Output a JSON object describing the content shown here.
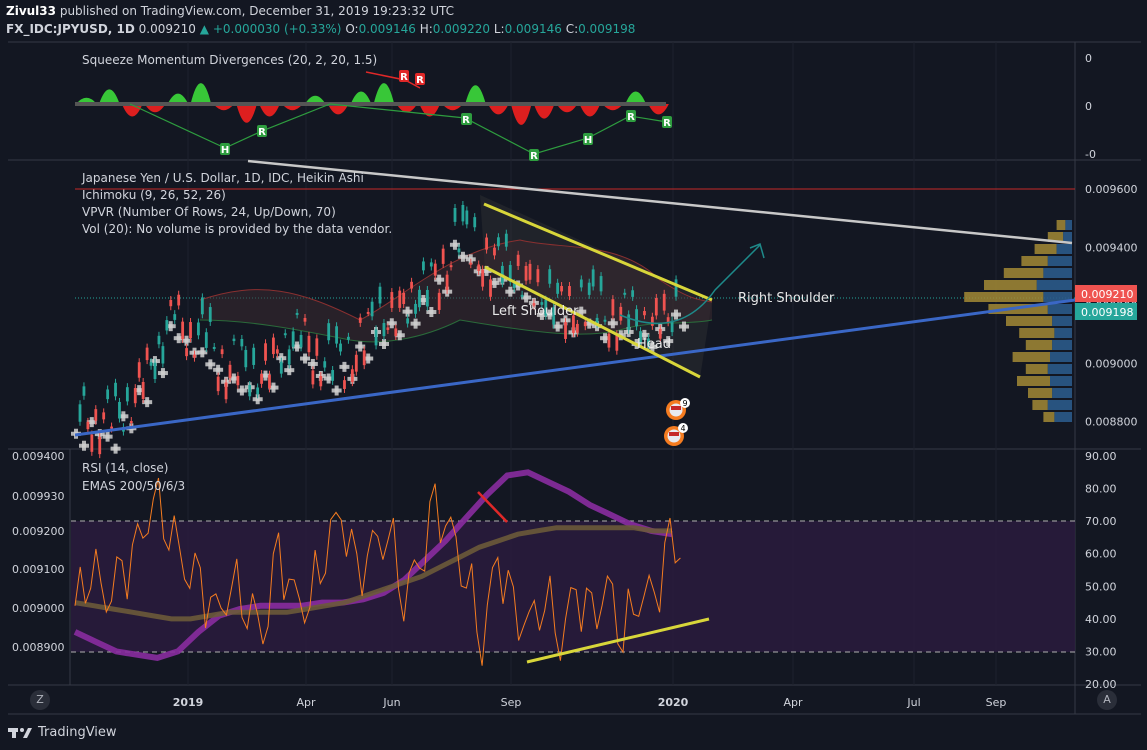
{
  "header": {
    "author": "Zivul33",
    "publish_text": "published on TradingView.com, December 31, 2019 19:23:32 UTC",
    "symbol": "FX_IDC:JPYUSD, 1D",
    "last": "0.009210",
    "change": "+0.000030 (+0.33%)",
    "o_label": "O:",
    "o": "0.009146",
    "h_label": "H:",
    "h": "0.009220",
    "l_label": "L:",
    "l": "0.009146",
    "c_label": "C:",
    "c": "0.009198"
  },
  "panes": {
    "squeeze": {
      "title": "Squeeze Momentum Divergences (20, 2, 20, 1.5)",
      "scale_labels": [
        "0",
        "0",
        "-0"
      ]
    },
    "main": {
      "legend": [
        "Japanese Yen / U.S. Dollar, 1D, IDC, Heikin Ashi",
        "Ichimoku (9, 26, 52, 26)",
        "VPVR (Number Of Rows, 24, Up/Down, 70)",
        "Vol (20): No volume is provided by the data vendor."
      ],
      "annotations": {
        "left_shoulder": "Left Shoulder",
        "head": "Head",
        "right_shoulder": "Right Shoulder"
      },
      "price_badges": [
        "0.009210",
        "0.009198"
      ],
      "event_counts": [
        "9",
        "4"
      ]
    },
    "rsi": {
      "title": "RSI (14, close)",
      "subtitle": "EMAS 200/50/6/3"
    }
  },
  "footer": {
    "brand": "TradingView",
    "left_btn": "Z",
    "right_btn": "A"
  },
  "colors": {
    "bg": "#131722",
    "up": "#26a69a",
    "down": "#ef5350",
    "yellow": "#d8d63a",
    "blue": "#3a67c6",
    "purple": "#8a2ca0",
    "orange": "#f57c20"
  },
  "chart_data": [
    {
      "type": "bar",
      "title": "Squeeze Momentum Divergences (20, 2, 20, 1.5)",
      "x_ticks": [
        "2019",
        "Apr",
        "Jun",
        "Sep",
        "2020",
        "Apr",
        "Jul",
        "Sep"
      ],
      "series": [
        {
          "values": [
            0.2,
            0.6,
            -0.5,
            -0.3,
            0.4,
            0.9,
            -0.2,
            -0.8,
            -0.5,
            -0.2,
            0.3,
            -0.4,
            0.5,
            0.9,
            -0.3,
            -0.5,
            -0.2,
            0.8,
            -0.4,
            -0.9,
            -0.6,
            -0.3,
            -0.5,
            -0.2,
            0.5,
            -0.4
          ]
        }
      ],
      "markers": [
        "H",
        "R",
        "R",
        "R",
        "R",
        "R",
        "H",
        "R",
        "R",
        "R"
      ],
      "ylim": [
        -1,
        1
      ]
    },
    {
      "type": "line",
      "title": "Japanese Yen / U.S. Dollar, 1D, IDC, Heikin Ashi",
      "x_ticks": [
        "2019",
        "Apr",
        "Jun",
        "Sep",
        "2020",
        "Apr",
        "Jul",
        "Sep"
      ],
      "y_ticks": [
        0.0096,
        0.0094,
        0.0092,
        0.009,
        0.0088
      ],
      "ylim": [
        0.00872,
        0.00969
      ],
      "series": [
        {
          "name": "close",
          "values": [
            0.0088,
            0.00884,
            0.00879,
            0.00886,
            0.00895,
            0.00905,
            0.00917,
            0.00912,
            0.00908,
            0.00902,
            0.00899,
            0.00896,
            0.009,
            0.00906,
            0.0091,
            0.00904,
            0.00899,
            0.00903,
            0.0091,
            0.00915,
            0.00918,
            0.00922,
            0.00926,
            0.00933,
            0.00945,
            0.0094,
            0.00936,
            0.00933,
            0.00931,
            0.00925,
            0.00921,
            0.00919,
            0.00922,
            0.00917,
            0.00918,
            0.00915,
            0.00914,
            0.00916,
            0.00921
          ]
        }
      ],
      "annotations": [
        "Left Shoulder",
        "Head",
        "Right Shoulder"
      ],
      "price_labels": [
        0.00921,
        0.009198
      ]
    },
    {
      "type": "line",
      "title": "RSI (14, close)",
      "subtitle": "EMAS 200/50/6/3",
      "x_ticks": [
        "2019",
        "Apr",
        "Jun",
        "Sep",
        "2020",
        "Apr",
        "Jul",
        "Sep"
      ],
      "y_ticks": [
        90,
        80,
        70,
        60,
        50,
        40,
        30,
        20
      ],
      "left_ticks": [
        0.0094,
        0.00993,
        0.0092,
        0.0091,
        0.009,
        0.0089
      ],
      "ylim": [
        20,
        90
      ],
      "bands": [
        30,
        70
      ],
      "series": [
        {
          "name": "RSI",
          "values": [
            44,
            58,
            47,
            52,
            61,
            78,
            70,
            56,
            49,
            40,
            52,
            46,
            35,
            59,
            45,
            47,
            63,
            72,
            52,
            61,
            69,
            48,
            56,
            73,
            66,
            55,
            34,
            58,
            41,
            38,
            49,
            35,
            47,
            39,
            50,
            37,
            48,
            45,
            62
          ]
        },
        {
          "name": "EMA 50",
          "values": [
            45,
            44,
            43,
            42,
            41,
            40,
            40,
            41,
            42,
            42,
            42,
            42,
            43,
            44,
            45,
            47,
            49,
            51,
            53,
            56,
            59,
            62,
            64,
            66,
            67,
            68,
            68,
            68,
            68,
            68,
            67,
            67
          ]
        },
        {
          "name": "EMA 200",
          "values": [
            36,
            33,
            30,
            29,
            28,
            30,
            36,
            41,
            43,
            44,
            44,
            44,
            45,
            45,
            46,
            48,
            52,
            58,
            64,
            71,
            78,
            84,
            85,
            82,
            79,
            75,
            72,
            69,
            67,
            66
          ]
        }
      ]
    }
  ]
}
